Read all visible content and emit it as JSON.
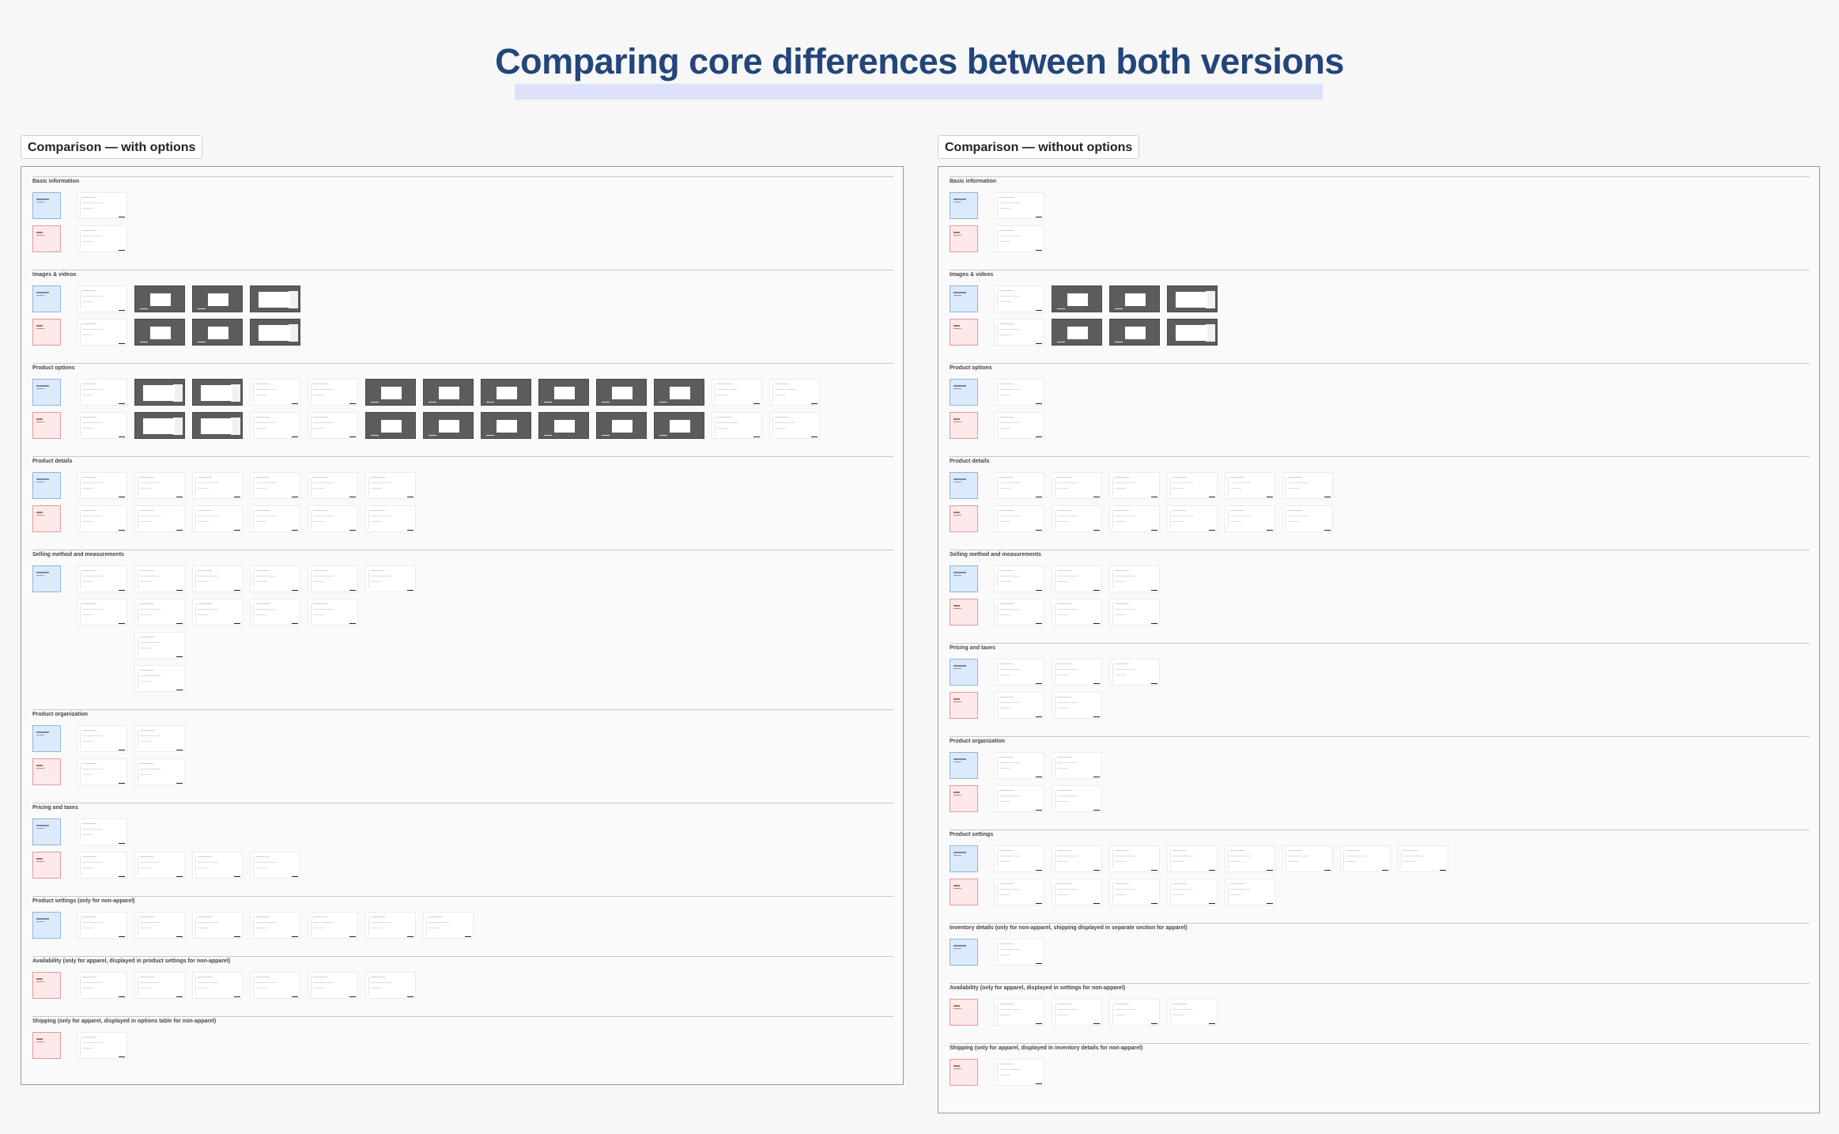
{
  "header": {
    "title": "Comparing core differences between both versions",
    "highlight_color": "#dde2fb",
    "title_color": "#23457a"
  },
  "legend_colors": {
    "blue_swatch": "#dcebfc",
    "red_swatch": "#fde9e9"
  },
  "columns": [
    {
      "label": "Comparison — with options",
      "sections": [
        {
          "title": "Basic information",
          "rows": [
            {
              "swatch": "blue",
              "thumbs": [
                "light"
              ]
            },
            {
              "swatch": "red",
              "thumbs": [
                "light"
              ]
            }
          ]
        },
        {
          "title": "Images & videos",
          "rows": [
            {
              "swatch": "blue",
              "thumbs": [
                "light",
                "dark",
                "dark",
                "darkw"
              ]
            },
            {
              "swatch": "red",
              "thumbs": [
                "light",
                "dark",
                "dark",
                "darkw"
              ]
            }
          ]
        },
        {
          "title": "Product options",
          "rows": [
            {
              "swatch": "blue",
              "thumbs": [
                "light",
                "darkw",
                "darkw",
                "light",
                "light",
                "dark",
                "dark",
                "dark",
                "dark",
                "dark",
                "dark",
                "light",
                "light"
              ]
            },
            {
              "swatch": "red",
              "thumbs": [
                "light",
                "darkw",
                "darkw",
                "light",
                "light",
                "dark",
                "dark",
                "dark",
                "dark",
                "dark",
                "dark",
                "light",
                "light"
              ]
            }
          ]
        },
        {
          "title": "Product details",
          "rows": [
            {
              "swatch": "blue",
              "thumbs": [
                "light",
                "light",
                "light",
                "light",
                "light",
                "light"
              ]
            },
            {
              "swatch": "red",
              "thumbs": [
                "light",
                "light",
                "light",
                "light",
                "light",
                "light"
              ]
            }
          ]
        },
        {
          "title": "Selling method and measurements",
          "rows": [
            {
              "swatch": "blue",
              "thumbs": [
                "light",
                "light",
                "light",
                "light",
                "light",
                "light"
              ]
            },
            {
              "swatch": "none",
              "thumbs": [
                "light",
                "light",
                "light",
                "light",
                "light"
              ]
            },
            {
              "swatch": "none",
              "thumbs": [
                "gap",
                "light"
              ]
            },
            {
              "swatch": "none",
              "thumbs": [
                "gap",
                "light"
              ]
            }
          ]
        },
        {
          "title": "Product organization",
          "rows": [
            {
              "swatch": "blue",
              "thumbs": [
                "light",
                "light"
              ]
            },
            {
              "swatch": "red",
              "thumbs": [
                "light",
                "light"
              ]
            }
          ]
        },
        {
          "title": "Pricing and taxes",
          "rows": [
            {
              "swatch": "blue",
              "thumbs": [
                "light"
              ]
            },
            {
              "swatch": "red",
              "thumbs": [
                "light",
                "light",
                "light",
                "light"
              ]
            }
          ]
        },
        {
          "title": "Product settings (only for non-apparel)",
          "rows": [
            {
              "swatch": "blue",
              "thumbs": [
                "light",
                "light",
                "light",
                "light",
                "light",
                "light",
                "light"
              ]
            }
          ]
        },
        {
          "title": "Availability (only for apparel, displayed in product settings for non-apparel)",
          "rows": [
            {
              "swatch": "red",
              "thumbs": [
                "light",
                "light",
                "light",
                "light",
                "light",
                "light"
              ]
            }
          ]
        },
        {
          "title": "Shipping (only for apparel, displayed in options table for non-apparel)",
          "rows": [
            {
              "swatch": "red",
              "thumbs": [
                "light"
              ]
            }
          ]
        }
      ]
    },
    {
      "label": "Comparison — without options",
      "sections": [
        {
          "title": "Basic information",
          "rows": [
            {
              "swatch": "blue",
              "thumbs": [
                "light"
              ]
            },
            {
              "swatch": "red",
              "thumbs": [
                "light"
              ]
            }
          ]
        },
        {
          "title": "Images & videos",
          "rows": [
            {
              "swatch": "blue",
              "thumbs": [
                "light",
                "dark",
                "dark",
                "darkw"
              ]
            },
            {
              "swatch": "red",
              "thumbs": [
                "light",
                "dark",
                "dark",
                "darkw"
              ]
            }
          ]
        },
        {
          "title": "Product options",
          "rows": [
            {
              "swatch": "blue",
              "thumbs": [
                "light"
              ]
            },
            {
              "swatch": "red",
              "thumbs": [
                "light"
              ]
            }
          ]
        },
        {
          "title": "Product details",
          "rows": [
            {
              "swatch": "blue",
              "thumbs": [
                "light",
                "light",
                "light",
                "light",
                "light",
                "light"
              ]
            },
            {
              "swatch": "red",
              "thumbs": [
                "light",
                "light",
                "light",
                "light",
                "light",
                "light"
              ]
            }
          ]
        },
        {
          "title": "Selling method and measurements",
          "rows": [
            {
              "swatch": "blue",
              "thumbs": [
                "light",
                "light",
                "light"
              ]
            },
            {
              "swatch": "red",
              "thumbs": [
                "light",
                "light",
                "light"
              ]
            }
          ]
        },
        {
          "title": "Pricing and taxes",
          "rows": [
            {
              "swatch": "blue",
              "thumbs": [
                "light",
                "light",
                "light"
              ]
            },
            {
              "swatch": "red",
              "thumbs": [
                "light",
                "light"
              ]
            }
          ]
        },
        {
          "title": "Product organization",
          "rows": [
            {
              "swatch": "blue",
              "thumbs": [
                "light",
                "light"
              ]
            },
            {
              "swatch": "red",
              "thumbs": [
                "light",
                "light"
              ]
            }
          ]
        },
        {
          "title": "Product settings",
          "rows": [
            {
              "swatch": "blue",
              "thumbs": [
                "light",
                "light",
                "light",
                "light",
                "light",
                "light",
                "light",
                "light"
              ]
            },
            {
              "swatch": "red",
              "thumbs": [
                "light",
                "light",
                "light",
                "light",
                "light"
              ]
            }
          ]
        },
        {
          "title": "Inventory details (only for non-apparel, shipping displayed in separate section for apparel)",
          "rows": [
            {
              "swatch": "blue",
              "thumbs": [
                "light"
              ]
            }
          ]
        },
        {
          "title": "Availability (only for apparel, displayed in settings for non-apparel)",
          "rows": [
            {
              "swatch": "red",
              "thumbs": [
                "light",
                "light",
                "light",
                "light"
              ]
            }
          ]
        },
        {
          "title": "Shipping (only for apparel, displayed in inventory details for non-apparel)",
          "rows": [
            {
              "swatch": "red",
              "thumbs": [
                "light"
              ]
            }
          ]
        }
      ]
    }
  ]
}
